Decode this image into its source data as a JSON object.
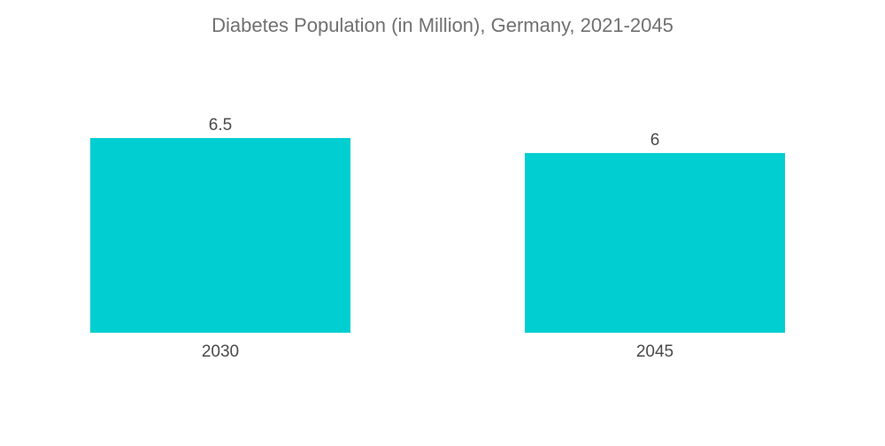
{
  "chart_data": {
    "type": "bar",
    "title": "Diabetes Population (in Million), Germany, 2021-2045",
    "categories": [
      "2030",
      "2045"
    ],
    "values": [
      6.5,
      6
    ],
    "value_labels": [
      "6.5",
      "6"
    ],
    "xlabel": "",
    "ylabel": "",
    "ylim": [
      0,
      6.5
    ],
    "grid": false,
    "bar_color": "#00CED1"
  }
}
